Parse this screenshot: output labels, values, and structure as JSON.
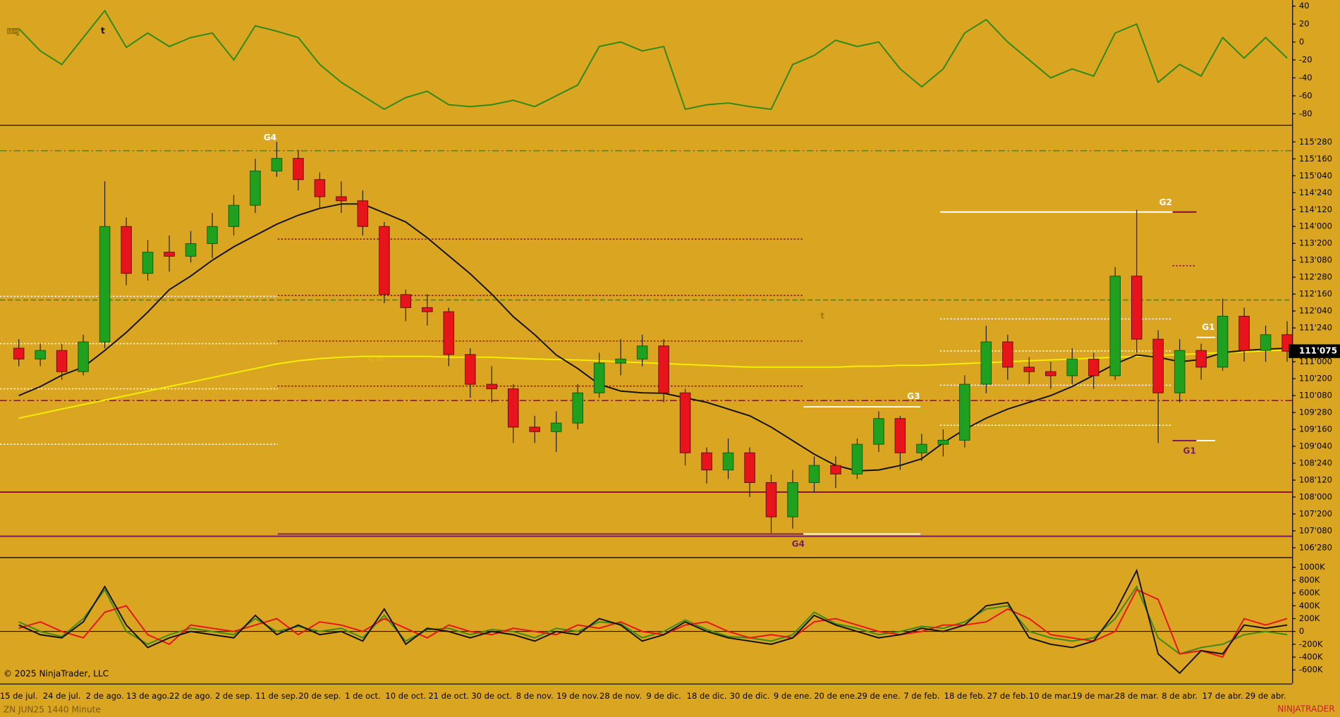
{
  "chart_data": [
    {
      "type": "line",
      "ylim": [
        -92.4,
        46.7
      ],
      "yticks": [
        40,
        20,
        0,
        -20,
        -40,
        -60,
        -80
      ],
      "series": [
        {
          "color": "#2a8a1a",
          "values": [
            15,
            -10,
            -25,
            5,
            35,
            -6,
            10,
            -5,
            5,
            10,
            -20,
            18,
            12,
            5,
            -25,
            -45,
            -60,
            -75,
            -62,
            -55,
            -70,
            -72,
            -70,
            -65,
            -72,
            -60,
            -48,
            -5,
            0,
            -10,
            -5,
            -75,
            -70,
            -68,
            -72,
            -75,
            -25,
            -15,
            2,
            -5,
            0,
            -30,
            -50,
            -30,
            10,
            25,
            0,
            -20,
            -40,
            -30,
            -38,
            10,
            20,
            -45,
            -25,
            -38,
            5,
            -18,
            5,
            -18
          ]
        }
      ]
    },
    {
      "type": "candlestick",
      "ylim": [
        106.667,
        116.216
      ],
      "yticks": [
        {
          "value": 115.875,
          "label": "115'280"
        },
        {
          "value": 115.5,
          "label": "115'160"
        },
        {
          "value": 115.125,
          "label": "115'040"
        },
        {
          "value": 114.75,
          "label": "114'240"
        },
        {
          "value": 114.375,
          "label": "114'120"
        },
        {
          "value": 114.0,
          "label": "114'000"
        },
        {
          "value": 113.625,
          "label": "113'200"
        },
        {
          "value": 113.25,
          "label": "113'080"
        },
        {
          "value": 112.875,
          "label": "112'280"
        },
        {
          "value": 112.5,
          "label": "112'160"
        },
        {
          "value": 112.125,
          "label": "112'040"
        },
        {
          "value": 111.75,
          "label": "111'240"
        },
        {
          "value": 111.0,
          "label": "111'000"
        },
        {
          "value": 110.625,
          "label": "110'200"
        },
        {
          "value": 110.25,
          "label": "110'080"
        },
        {
          "value": 109.875,
          "label": "109'280"
        },
        {
          "value": 109.5,
          "label": "109'160"
        },
        {
          "value": 109.125,
          "label": "109'040"
        },
        {
          "value": 108.75,
          "label": "108'240"
        },
        {
          "value": 108.375,
          "label": "108'120"
        },
        {
          "value": 108.0,
          "label": "108'000"
        },
        {
          "value": 107.625,
          "label": "107'200"
        },
        {
          "value": 107.25,
          "label": "107'080"
        },
        {
          "value": 106.875,
          "label": "106'280"
        }
      ],
      "categories": [
        "15 de jul.",
        null,
        "24 de jul.",
        null,
        "2 de ago.",
        null,
        "13 de ago.",
        null,
        "22 de ago.",
        null,
        "2 de sep.",
        null,
        "11 de sep.",
        null,
        "20 de sep.",
        null,
        "1 de oct.",
        null,
        "10 de oct.",
        null,
        "21 de oct.",
        null,
        "30 de oct.",
        null,
        "8 de nov.",
        null,
        "19 de nov.",
        null,
        "28 de nov.",
        null,
        "9 de dic.",
        null,
        "18 de dic.",
        null,
        "30 de dic.",
        null,
        "9 de ene.",
        null,
        "20 de ene.",
        null,
        "29 de ene.",
        null,
        "7 de feb.",
        null,
        "18 de feb.",
        null,
        "27 de feb.",
        null,
        "10 de mar.",
        null,
        "19 de mar.",
        null,
        "28 de mar.",
        null,
        "8 de abr.",
        null,
        "17 de abr.",
        null,
        "29 de abr.",
        null
      ],
      "open": [
        111.3,
        111.06,
        111.25,
        110.78,
        111.44,
        114.0,
        112.96,
        113.43,
        113.34,
        113.62,
        114.0,
        114.47,
        115.23,
        115.51,
        115.04,
        114.66,
        114.57,
        114.0,
        112.49,
        112.2,
        112.11,
        111.16,
        110.5,
        110.4,
        109.55,
        109.45,
        109.64,
        110.31,
        110.97,
        111.06,
        111.35,
        110.31,
        108.98,
        108.6,
        108.98,
        108.32,
        107.56,
        108.32,
        108.7,
        108.51,
        109.17,
        109.74,
        108.98,
        109.17,
        109.26,
        110.5,
        111.44,
        110.88,
        110.78,
        110.69,
        111.06,
        110.69,
        112.9,
        111.5,
        110.31,
        111.25,
        110.88,
        112.01,
        111.25,
        111.6
      ],
      "high": [
        111.5,
        111.4,
        111.4,
        111.6,
        115.0,
        114.2,
        113.7,
        113.8,
        113.9,
        114.3,
        114.7,
        115.5,
        115.88,
        115.7,
        115.2,
        115.0,
        114.8,
        114.1,
        112.6,
        112.5,
        112.2,
        111.3,
        110.9,
        110.5,
        109.8,
        109.9,
        110.5,
        111.2,
        111.5,
        111.6,
        111.5,
        110.4,
        109.1,
        109.3,
        109.1,
        108.5,
        108.6,
        108.9,
        108.9,
        109.3,
        109.9,
        109.8,
        109.4,
        109.5,
        110.7,
        111.8,
        111.6,
        111.1,
        111.0,
        111.3,
        111.2,
        113.1,
        114.37,
        111.7,
        111.5,
        111.4,
        112.4,
        112.2,
        111.8,
        111.9
      ],
      "low": [
        110.9,
        110.9,
        110.6,
        110.7,
        111.3,
        112.7,
        112.8,
        113.0,
        113.2,
        113.3,
        113.8,
        114.3,
        115.1,
        114.8,
        114.4,
        114.3,
        113.8,
        112.3,
        111.9,
        111.8,
        110.9,
        110.2,
        110.1,
        109.2,
        109.2,
        109.0,
        109.5,
        110.2,
        110.7,
        110.9,
        110.1,
        108.7,
        108.3,
        108.4,
        108.0,
        107.2,
        107.3,
        108.1,
        108.2,
        108.4,
        109.0,
        108.6,
        108.8,
        108.9,
        109.1,
        110.3,
        110.6,
        110.5,
        110.4,
        110.5,
        110.4,
        110.6,
        111.2,
        109.2,
        110.1,
        110.6,
        110.8,
        111.0,
        111.0,
        111.0
      ],
      "close": [
        111.06,
        111.25,
        110.78,
        111.44,
        114.0,
        112.96,
        113.43,
        113.34,
        113.62,
        114.0,
        114.47,
        115.23,
        115.51,
        115.04,
        114.66,
        114.57,
        114.0,
        112.49,
        112.2,
        112.11,
        111.16,
        110.5,
        110.4,
        109.55,
        109.45,
        109.64,
        110.31,
        110.97,
        111.06,
        111.35,
        110.31,
        108.98,
        108.6,
        108.98,
        108.32,
        107.56,
        108.32,
        108.7,
        108.51,
        109.17,
        109.74,
        108.98,
        109.17,
        109.26,
        110.5,
        111.44,
        110.88,
        110.78,
        110.69,
        111.06,
        110.69,
        112.9,
        111.5,
        110.31,
        111.25,
        110.88,
        112.01,
        111.25,
        111.6,
        111.234
      ],
      "up_color": "#1fa01f",
      "down_color": "#e8141c",
      "series": [
        {
          "color": "#f5f000",
          "values": [
            109.75,
            109.85,
            109.95,
            110.05,
            110.15,
            110.25,
            110.35,
            110.45,
            110.55,
            110.65,
            110.75,
            110.85,
            110.95,
            111.02,
            111.07,
            111.1,
            111.12,
            111.12,
            111.12,
            111.12,
            111.1,
            111.1,
            111.1,
            111.08,
            111.06,
            111.05,
            111.04,
            111.02,
            111.0,
            110.98,
            110.96,
            110.94,
            110.92,
            110.9,
            110.88,
            110.88,
            110.88,
            110.88,
            110.88,
            110.9,
            110.9,
            110.92,
            110.92,
            110.94,
            110.96,
            110.98,
            111.0,
            111.02,
            111.04,
            111.06,
            111.08,
            111.1,
            111.12,
            111.14,
            111.16,
            111.18,
            111.2,
            111.22,
            111.24,
            111.26
          ]
        },
        {
          "color": "#111111",
          "values": [
            110.25,
            110.45,
            110.7,
            110.88,
            111.25,
            111.65,
            112.1,
            112.6,
            112.9,
            113.25,
            113.55,
            113.8,
            114.05,
            114.25,
            114.4,
            114.5,
            114.5,
            114.3,
            114.1,
            113.75,
            113.35,
            112.95,
            112.5,
            112.0,
            111.6,
            111.15,
            110.85,
            110.5,
            110.35,
            110.31,
            110.3,
            110.2,
            110.1,
            109.95,
            109.8,
            109.55,
            109.25,
            108.95,
            108.7,
            108.58,
            108.6,
            108.7,
            108.85,
            109.2,
            109.5,
            109.75,
            109.95,
            110.1,
            110.25,
            110.45,
            110.7,
            110.95,
            111.15,
            111.1,
            111.0,
            111.05,
            111.2,
            111.25,
            111.28,
            111.3
          ]
        }
      ],
      "levels": [
        {
          "price": 115.68,
          "color": "#2e8b2e",
          "style": "dashdot"
        },
        {
          "price": 112.37,
          "color": "#2e8b2e",
          "style": "dashed"
        },
        {
          "price": 110.14,
          "color": "#8b0a3a",
          "style": "dashdot"
        },
        {
          "price": 108.11,
          "color": "#8b0a2a",
          "style": "solid"
        },
        {
          "price": 107.13,
          "color": "#7b1a6a",
          "style": "solid"
        },
        {
          "price": 112.45,
          "color": "#ffffff",
          "style": "dotted"
        },
        {
          "price": 111.4,
          "color": "#ffffff",
          "style": "dotted"
        },
        {
          "price": 110.4,
          "color": "#ffffff",
          "style": "dotted"
        },
        {
          "price": 109.17,
          "color": "#ffffff",
          "style": "dotted"
        },
        {
          "price": 113.72,
          "color": "#8b0a3a",
          "style": "dotted"
        },
        {
          "price": 112.47,
          "color": "#8b0a3a",
          "style": "dotted"
        },
        {
          "price": 111.46,
          "color": "#8b0a3a",
          "style": "dotted"
        },
        {
          "price": 110.46,
          "color": "#8b0a3a",
          "style": "dotted"
        },
        {
          "price": 107.18,
          "color": "#7b1a6a",
          "style": "solid"
        },
        {
          "price": 107.18,
          "color": "#ffffff",
          "style": "solid"
        },
        {
          "price": 110.0,
          "color": "#ffffff",
          "style": "solid"
        },
        {
          "price": 114.32,
          "color": "#ffffff",
          "style": "solid"
        },
        {
          "price": 114.32,
          "color": "#8b0a3a",
          "style": "solid"
        },
        {
          "price": 111.95,
          "color": "#ffffff",
          "style": "dotted"
        },
        {
          "price": 111.24,
          "color": "#ffffff",
          "style": "dotted"
        },
        {
          "price": 110.48,
          "color": "#ffffff",
          "style": "dotted"
        },
        {
          "price": 109.59,
          "color": "#ffffff",
          "style": "dotted"
        },
        {
          "price": 113.13,
          "color": "#8b0a3a",
          "style": "dotted"
        },
        {
          "price": 109.25,
          "color": "#7b1a6a",
          "style": "solid"
        },
        {
          "price": 109.25,
          "color": "#ffffff",
          "style": "solid"
        },
        {
          "price": 111.54,
          "color": "#ffffff",
          "style": "solid"
        }
      ],
      "annotations": [
        {
          "text": "G4",
          "color": "#ffffff"
        },
        {
          "text": "G4",
          "color": "#7b1a6a"
        },
        {
          "text": "G3",
          "color": "#ffffff"
        },
        {
          "text": "G2",
          "color": "#ffffff"
        },
        {
          "text": "G1",
          "color": "#ffffff"
        },
        {
          "text": "G1",
          "color": "#7b1a6a"
        }
      ],
      "last_price": {
        "value": 111.234,
        "label": "111'075"
      }
    },
    {
      "type": "line",
      "ylim": [
        -813000,
        1133000
      ],
      "yticks": [
        {
          "value": 1000000,
          "label": "1000K"
        },
        {
          "value": 800000,
          "label": "800K"
        },
        {
          "value": 600000,
          "label": "600K"
        },
        {
          "value": 400000,
          "label": "400K"
        },
        {
          "value": 200000,
          "label": "200K"
        },
        0,
        {
          "value": -200000,
          "label": "-200K"
        },
        {
          "value": -400000,
          "label": "-400K"
        },
        {
          "value": -600000,
          "label": "-600K"
        }
      ],
      "series": [
        {
          "color": "#3a8a1a",
          "values": [
            150000,
            0,
            -80000,
            200000,
            650000,
            0,
            -200000,
            -50000,
            50000,
            0,
            -50000,
            200000,
            0,
            80000,
            0,
            50000,
            -100000,
            250000,
            -150000,
            30000,
            50000,
            -50000,
            30000,
            0,
            -100000,
            50000,
            0,
            150000,
            120000,
            -100000,
            0,
            180000,
            30000,
            -80000,
            -100000,
            -150000,
            -50000,
            300000,
            120000,
            50000,
            -50000,
            0,
            80000,
            50000,
            150000,
            350000,
            400000,
            0,
            -100000,
            -150000,
            -100000,
            200000,
            700000,
            -100000,
            -350000,
            -250000,
            -200000,
            -50000,
            0,
            -50000
          ]
        },
        {
          "color": "#e8141c",
          "values": [
            50000,
            150000,
            0,
            -100000,
            300000,
            400000,
            -50000,
            -200000,
            100000,
            50000,
            0,
            100000,
            200000,
            -50000,
            150000,
            100000,
            0,
            200000,
            50000,
            -100000,
            100000,
            0,
            -50000,
            50000,
            0,
            -50000,
            100000,
            50000,
            150000,
            0,
            -50000,
            100000,
            150000,
            0,
            -100000,
            -50000,
            -100000,
            150000,
            200000,
            100000,
            0,
            -50000,
            0,
            100000,
            100000,
            150000,
            350000,
            200000,
            -50000,
            -100000,
            -150000,
            0,
            650000,
            500000,
            -350000,
            -300000,
            -400000,
            200000,
            100000,
            200000
          ]
        },
        {
          "color": "#111111",
          "values": [
            100000,
            -50000,
            -100000,
            150000,
            700000,
            100000,
            -250000,
            -100000,
            0,
            -50000,
            -100000,
            250000,
            -50000,
            100000,
            -50000,
            0,
            -150000,
            350000,
            -200000,
            50000,
            0,
            -100000,
            0,
            -50000,
            -150000,
            0,
            -50000,
            200000,
            100000,
            -150000,
            -50000,
            150000,
            0,
            -100000,
            -150000,
            -200000,
            -100000,
            250000,
            100000,
            0,
            -100000,
            -50000,
            50000,
            0,
            100000,
            400000,
            450000,
            -100000,
            -200000,
            -250000,
            -150000,
            300000,
            950000,
            -350000,
            -650000,
            -300000,
            -350000,
            100000,
            50000,
            100000
          ]
        }
      ]
    }
  ],
  "logo": [
    "mq",
    "t"
  ],
  "copyright": "© 2025 NinjaTrader, LLC",
  "instrument": "ZN JUN25 1440 Minute",
  "brand": "NINJATRADER"
}
